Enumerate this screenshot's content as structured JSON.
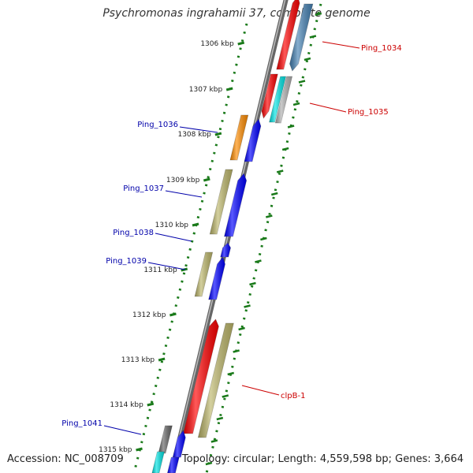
{
  "title": "Psychromonas ingrahamii 37, complete genome",
  "accession": "Accession: NC_008709",
  "summary": "Topology: circular; Length: 4,559,598 bp; Genes: 3,664",
  "colors": {
    "backbone": "#8a8a8a",
    "tick": "#1a7a1a",
    "label_red": "#cc0000",
    "label_blue": "#0000aa",
    "red": "#ff0000",
    "blue": "#0000ff",
    "khaki": "#bdb76b",
    "orange": "#ff8c00",
    "cyan": "#00e5e5",
    "steelblue": "#4682b4",
    "gray": "#666666",
    "lightgray": "#b0b0b0"
  },
  "ticks": [
    "1306 kbp",
    "1307 kbp",
    "1308 kbp",
    "1309 kbp",
    "1310 kbp",
    "1311 kbp",
    "1312 kbp",
    "1313 kbp",
    "1314 kbp",
    "1315 kbp"
  ],
  "gene_labels": [
    {
      "text": "Ping_1034",
      "side": "right",
      "color": "label_red"
    },
    {
      "text": "Ping_1035",
      "side": "right",
      "color": "label_red"
    },
    {
      "text": "Ping_1036",
      "side": "left",
      "color": "label_blue"
    },
    {
      "text": "Ping_1037",
      "side": "left",
      "color": "label_blue"
    },
    {
      "text": "Ping_1038",
      "side": "left",
      "color": "label_blue"
    },
    {
      "text": "Ping_1039",
      "side": "left",
      "color": "label_blue"
    },
    {
      "text": "clpB-1",
      "side": "right",
      "color": "label_red"
    },
    {
      "text": "Ping_1041",
      "side": "left",
      "color": "label_blue"
    }
  ]
}
